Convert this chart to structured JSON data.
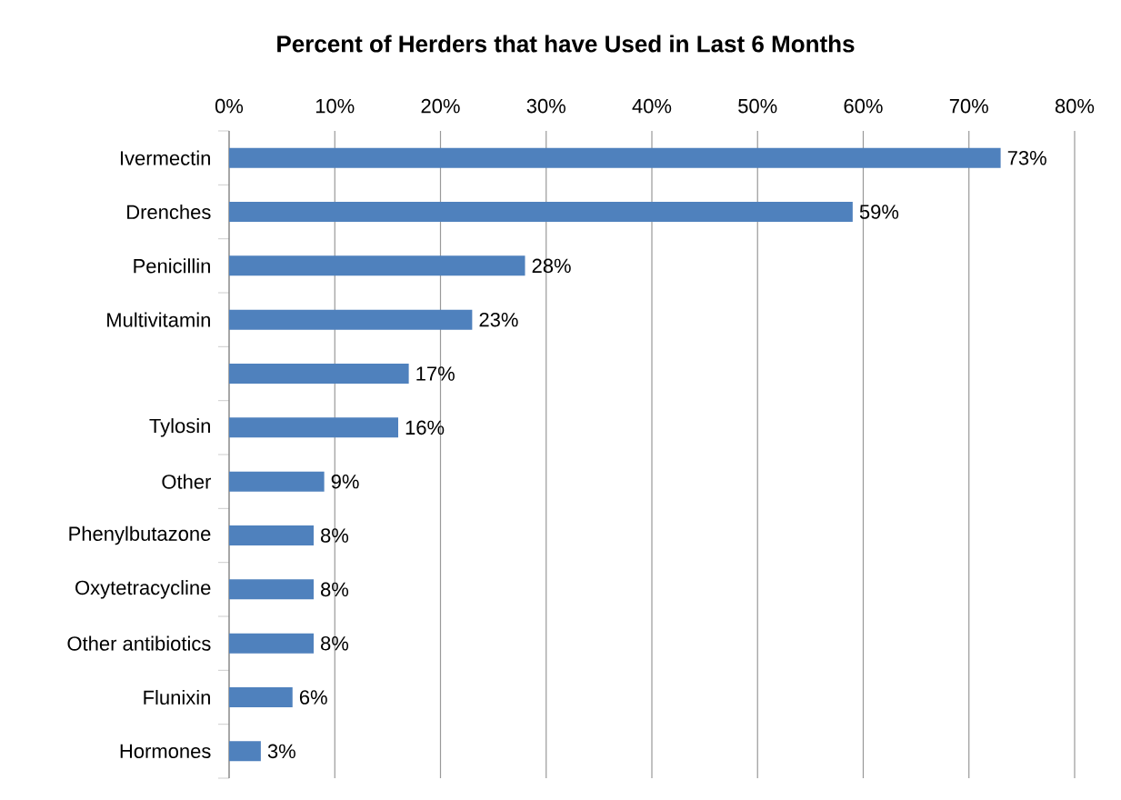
{
  "chart_data": {
    "type": "bar",
    "orientation": "horizontal",
    "title": "Percent of Herders that have Used in Last 6 Months",
    "categories": [
      "Ivermectin",
      "Drenches",
      "Penicillin",
      "Multivitamin",
      null,
      "Tylosin",
      "Other",
      "Phenylbutazone",
      "Oxytetracycline",
      "Other antibiotics",
      "Flunixin",
      "Hormones"
    ],
    "values": [
      73,
      59,
      28,
      23,
      17,
      16,
      9,
      8,
      8,
      8,
      6,
      3
    ],
    "value_labels": [
      "73%",
      "59%",
      "28%",
      "23%",
      "17%",
      "16%",
      "9%",
      "8%",
      "8%",
      "8%",
      "6%",
      "3%"
    ],
    "color": "#4f81bd",
    "xlim": [
      0,
      80
    ],
    "xticks": [
      {
        "value": 0,
        "label": "0%"
      },
      {
        "value": 10,
        "label": "10%"
      },
      {
        "value": 20,
        "label": "20%"
      },
      {
        "value": 30,
        "label": "30%"
      },
      {
        "value": 40,
        "label": "40%"
      },
      {
        "value": 50,
        "label": "50%"
      },
      {
        "value": 60,
        "label": "60%"
      },
      {
        "value": 70,
        "label": "70%"
      },
      {
        "value": 80,
        "label": "80%"
      }
    ],
    "grid": "x"
  }
}
